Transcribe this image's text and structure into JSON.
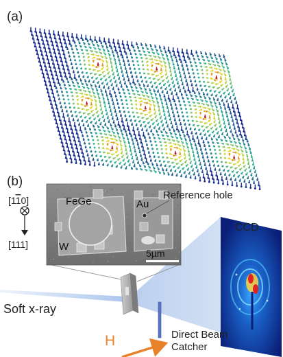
{
  "panel_a": {
    "label": "(a)",
    "colors": {
      "low": "#1d2f8c",
      "mid": "#33b09a",
      "high": "#f0e22c",
      "core": "#b2182b"
    }
  },
  "panel_b": {
    "label": "(b)",
    "sem": {
      "material_label": "FeGe",
      "electrode_label": "Au",
      "mask_label": "W",
      "scale_bar": "5µm"
    },
    "crystal_axes": {
      "in_plane": "[1̅0]",
      "in_plane_prefix": "[1",
      "in_plane_bar": "1",
      "in_plane_suffix": "0]",
      "out_of_plane": "[111]"
    },
    "reference_hole_label": "Reference hole",
    "ccd_label": "CCD",
    "xray_label": "Soft x-ray",
    "field_label": "H",
    "beam_catcher_label_1": "Direct Beam",
    "beam_catcher_label_2": "Catcher",
    "colors": {
      "beam": "#8fb3e6",
      "field_arrow": "#e8822a",
      "catcher": "#5a76c8",
      "ccd_bg": "#0b1f78"
    }
  }
}
